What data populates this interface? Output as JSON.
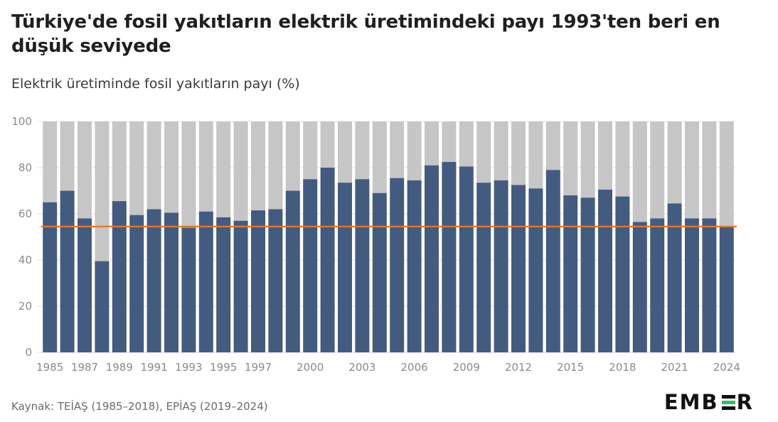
{
  "title": "Türkiye'de fosil yakıtların elektrik üretimindeki payı 1993'ten beri en düşük seviyede",
  "subtitle": "Elektrik üretiminde fosil yakıtların payı (%)",
  "source": "Kaynak: TEİAŞ (1985–2018), EPİAŞ (2019–2024)",
  "logo": {
    "left": "EMB",
    "right": "R",
    "icon": "ember-e-stripes-icon"
  },
  "colors": {
    "fossil": "#445b80",
    "remainder": "#c6c6c6",
    "reference_line": "#e87722",
    "grid": "#e0e0e0",
    "tick_text": "#8a8a8a",
    "logo_accent": "#2ec25c"
  },
  "chart_data": {
    "type": "bar",
    "stacked": true,
    "title": "Türkiye'de fosil yakıtların elektrik üretimindeki payı 1993'ten beri en düşük seviyede",
    "ylabel": "Elektrik üretiminde fosil yakıtların payı (%)",
    "ylim": [
      0,
      100
    ],
    "yticks": [
      0,
      20,
      40,
      60,
      80,
      100
    ],
    "xtick_labels": [
      "1985",
      "1987",
      "1989",
      "1991",
      "1993",
      "1995",
      "1997",
      "2000",
      "2003",
      "2006",
      "2009",
      "2012",
      "2015",
      "2018",
      "2021",
      "2024"
    ],
    "grid": true,
    "categories": [
      "1985",
      "1986",
      "1987",
      "1988",
      "1989",
      "1990",
      "1991",
      "1992",
      "1993",
      "1994",
      "1995",
      "1996",
      "1997",
      "1998",
      "1999",
      "2000",
      "2001",
      "2002",
      "2003",
      "2004",
      "2005",
      "2006",
      "2007",
      "2008",
      "2009",
      "2010",
      "2011",
      "2012",
      "2013",
      "2014",
      "2015",
      "2016",
      "2017",
      "2018",
      "2019",
      "2020",
      "2021",
      "2022",
      "2023",
      "2024"
    ],
    "series": [
      {
        "values": [
          65,
          70,
          58,
          39.5,
          65.5,
          59.5,
          62,
          60.5,
          54,
          61,
          58.5,
          57,
          61.5,
          62,
          70,
          75,
          80,
          73.5,
          75,
          69,
          75.5,
          74.5,
          81,
          82.5,
          80.5,
          73.5,
          74.5,
          72.5,
          71,
          79,
          68,
          67,
          70.5,
          67.5,
          56.5,
          58,
          64.5,
          58,
          58,
          54.5
        ]
      },
      {
        "values": [
          35,
          30,
          42,
          60.5,
          34.5,
          40.5,
          38,
          39.5,
          46,
          39,
          41.5,
          43,
          38.5,
          38,
          30,
          25,
          20,
          26.5,
          25,
          31,
          24.5,
          25.5,
          19,
          17.5,
          19.5,
          26.5,
          25.5,
          27.5,
          29,
          21,
          32,
          33,
          29.5,
          32.5,
          43.5,
          42,
          35.5,
          42,
          42,
          45.5
        ]
      }
    ],
    "reference_line": {
      "value": 54.5
    }
  }
}
